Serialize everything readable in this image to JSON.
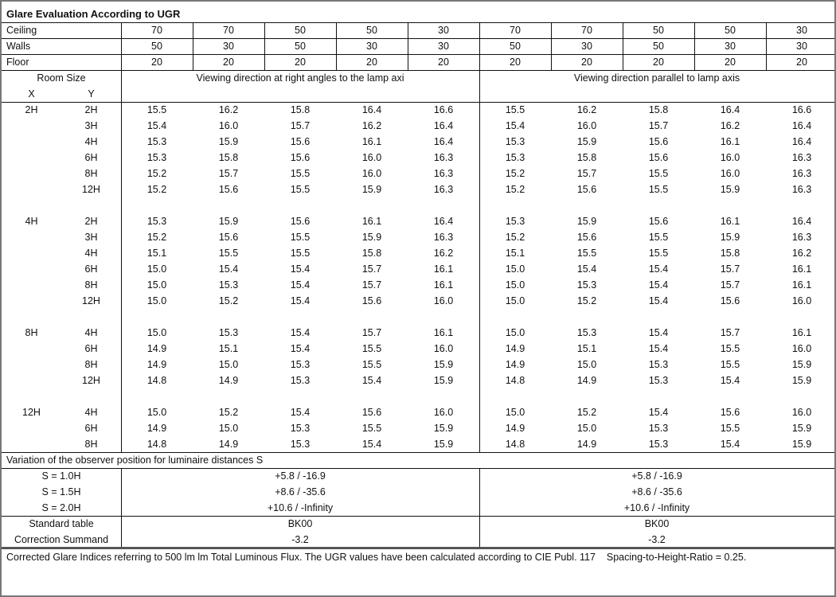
{
  "title": "Glare Evaluation According to UGR",
  "reflectances": [
    {
      "label": "Ceiling",
      "values": [
        "70",
        "70",
        "50",
        "50",
        "30",
        "70",
        "70",
        "50",
        "50",
        "30"
      ]
    },
    {
      "label": "Walls",
      "values": [
        "50",
        "30",
        "50",
        "30",
        "30",
        "50",
        "30",
        "50",
        "30",
        "30"
      ]
    },
    {
      "label": "Floor",
      "values": [
        "20",
        "20",
        "20",
        "20",
        "20",
        "20",
        "20",
        "20",
        "20",
        "20"
      ]
    }
  ],
  "room_size_label": "Room Size",
  "x_label": "X",
  "y_label": "Y",
  "direction_right": "Viewing direction at right angles to the lamp axi",
  "direction_parallel": "Viewing direction parallel to lamp axis",
  "groups": [
    {
      "x": "2H",
      "rows": [
        {
          "y": "2H",
          "values": [
            "15.5",
            "16.2",
            "15.8",
            "16.4",
            "16.6",
            "15.5",
            "16.2",
            "15.8",
            "16.4",
            "16.6"
          ]
        },
        {
          "y": "3H",
          "values": [
            "15.4",
            "16.0",
            "15.7",
            "16.2",
            "16.4",
            "15.4",
            "16.0",
            "15.7",
            "16.2",
            "16.4"
          ]
        },
        {
          "y": "4H",
          "values": [
            "15.3",
            "15.9",
            "15.6",
            "16.1",
            "16.4",
            "15.3",
            "15.9",
            "15.6",
            "16.1",
            "16.4"
          ]
        },
        {
          "y": "6H",
          "values": [
            "15.3",
            "15.8",
            "15.6",
            "16.0",
            "16.3",
            "15.3",
            "15.8",
            "15.6",
            "16.0",
            "16.3"
          ]
        },
        {
          "y": "8H",
          "values": [
            "15.2",
            "15.7",
            "15.5",
            "16.0",
            "16.3",
            "15.2",
            "15.7",
            "15.5",
            "16.0",
            "16.3"
          ]
        },
        {
          "y": "12H",
          "values": [
            "15.2",
            "15.6",
            "15.5",
            "15.9",
            "16.3",
            "15.2",
            "15.6",
            "15.5",
            "15.9",
            "16.3"
          ]
        }
      ]
    },
    {
      "x": "4H",
      "rows": [
        {
          "y": "2H",
          "values": [
            "15.3",
            "15.9",
            "15.6",
            "16.1",
            "16.4",
            "15.3",
            "15.9",
            "15.6",
            "16.1",
            "16.4"
          ]
        },
        {
          "y": "3H",
          "values": [
            "15.2",
            "15.6",
            "15.5",
            "15.9",
            "16.3",
            "15.2",
            "15.6",
            "15.5",
            "15.9",
            "16.3"
          ]
        },
        {
          "y": "4H",
          "values": [
            "15.1",
            "15.5",
            "15.5",
            "15.8",
            "16.2",
            "15.1",
            "15.5",
            "15.5",
            "15.8",
            "16.2"
          ]
        },
        {
          "y": "6H",
          "values": [
            "15.0",
            "15.4",
            "15.4",
            "15.7",
            "16.1",
            "15.0",
            "15.4",
            "15.4",
            "15.7",
            "16.1"
          ]
        },
        {
          "y": "8H",
          "values": [
            "15.0",
            "15.3",
            "15.4",
            "15.7",
            "16.1",
            "15.0",
            "15.3",
            "15.4",
            "15.7",
            "16.1"
          ]
        },
        {
          "y": "12H",
          "values": [
            "15.0",
            "15.2",
            "15.4",
            "15.6",
            "16.0",
            "15.0",
            "15.2",
            "15.4",
            "15.6",
            "16.0"
          ]
        }
      ]
    },
    {
      "x": "8H",
      "rows": [
        {
          "y": "4H",
          "values": [
            "15.0",
            "15.3",
            "15.4",
            "15.7",
            "16.1",
            "15.0",
            "15.3",
            "15.4",
            "15.7",
            "16.1"
          ]
        },
        {
          "y": "6H",
          "values": [
            "14.9",
            "15.1",
            "15.4",
            "15.5",
            "16.0",
            "14.9",
            "15.1",
            "15.4",
            "15.5",
            "16.0"
          ]
        },
        {
          "y": "8H",
          "values": [
            "14.9",
            "15.0",
            "15.3",
            "15.5",
            "15.9",
            "14.9",
            "15.0",
            "15.3",
            "15.5",
            "15.9"
          ]
        },
        {
          "y": "12H",
          "values": [
            "14.8",
            "14.9",
            "15.3",
            "15.4",
            "15.9",
            "14.8",
            "14.9",
            "15.3",
            "15.4",
            "15.9"
          ]
        }
      ]
    },
    {
      "x": "12H",
      "rows": [
        {
          "y": "4H",
          "values": [
            "15.0",
            "15.2",
            "15.4",
            "15.6",
            "16.0",
            "15.0",
            "15.2",
            "15.4",
            "15.6",
            "16.0"
          ]
        },
        {
          "y": "6H",
          "values": [
            "14.9",
            "15.0",
            "15.3",
            "15.5",
            "15.9",
            "14.9",
            "15.0",
            "15.3",
            "15.5",
            "15.9"
          ]
        },
        {
          "y": "8H",
          "values": [
            "14.8",
            "14.9",
            "15.3",
            "15.4",
            "15.9",
            "14.8",
            "14.9",
            "15.3",
            "15.4",
            "15.9"
          ]
        }
      ]
    }
  ],
  "variation_title": "Variation of the observer position for luminaire distances S",
  "variation": [
    {
      "label": "S = 1.0H",
      "right": "+5.8 / -16.9",
      "parallel": "+5.8 / -16.9"
    },
    {
      "label": "S = 1.5H",
      "right": "+8.6 / -35.6",
      "parallel": "+8.6 / -35.6"
    },
    {
      "label": "S = 2.0H",
      "right": "+10.6 / -Infinity",
      "parallel": "+10.6 / -Infinity"
    }
  ],
  "standard": [
    {
      "label": "Standard table",
      "right": "BK00",
      "parallel": "BK00"
    },
    {
      "label": "Correction Summand",
      "right": "-3.2",
      "parallel": "-3.2"
    }
  ],
  "footer": "Corrected Glare Indices referring to 500 lm lm Total Luminous Flux. The UGR values have been calculated according to CIE Publ. 117    Spacing-to-Height-Ratio = 0.25."
}
